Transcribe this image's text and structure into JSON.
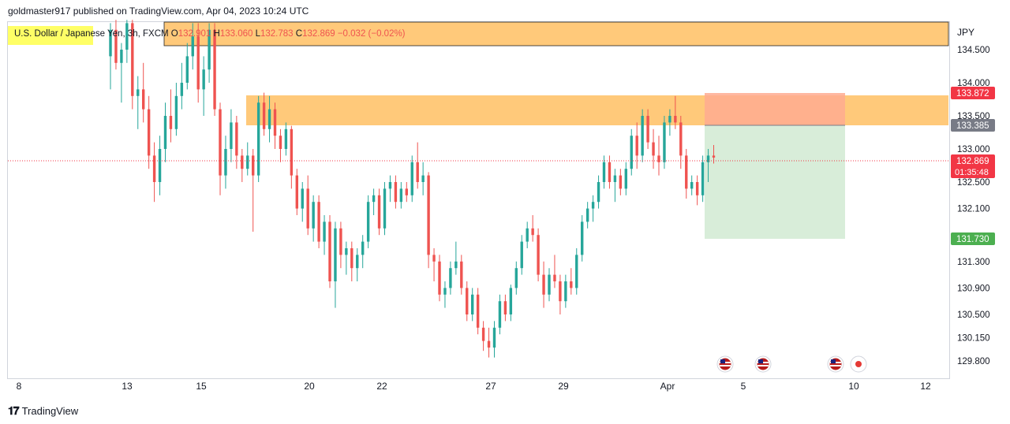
{
  "header": {
    "published": "goldmaster917 published on TradingView.com, Apr 04, 2023 10:24 UTC"
  },
  "legend": {
    "symbol": "U.S. Dollar / Japanese Yen, 3h, FXCM",
    "o_label": "O",
    "o_value": "132.901",
    "h_label": "H",
    "h_value": "133.060",
    "l_label": "L",
    "l_value": "132.783",
    "c_label": "C",
    "c_value": "132.869",
    "change": "−0.032 (−0.02%)"
  },
  "footer": {
    "logo": "𝟏𝟕",
    "brand": "TradingView"
  },
  "colors": {
    "up": "#26a69a",
    "down": "#ef5350",
    "zone": "#ffb74d",
    "profit": "#c8e6c9",
    "loss": "#ffab91",
    "target_tag": "#4caf50",
    "stop_tag": "#f23645",
    "entry_tag": "#787b86",
    "last_tag": "#f23645"
  },
  "chart_data": {
    "type": "candlestick",
    "symbol": "USDJPY",
    "timeframe": "3h",
    "currency": "JPY",
    "y_ticks": [
      "134.500",
      "134.000",
      "133.500",
      "133.000",
      "132.500",
      "132.100",
      "131.300",
      "130.900",
      "130.500",
      "130.150",
      "129.800"
    ],
    "y_tick_values": [
      134.5,
      134.0,
      133.5,
      133.0,
      132.5,
      132.1,
      131.3,
      130.9,
      130.5,
      130.15,
      129.8
    ],
    "x_ticks": [
      "8",
      "13",
      "15",
      "20",
      "22",
      "27",
      "29",
      "Apr",
      "5",
      "10",
      "12"
    ],
    "ylim": [
      129.75,
      134.95
    ],
    "candles": [
      {
        "o": 134.4,
        "h": 134.9,
        "l": 133.9,
        "c": 134.8
      },
      {
        "o": 134.8,
        "h": 134.95,
        "l": 134.2,
        "c": 134.3
      },
      {
        "o": 134.3,
        "h": 134.6,
        "l": 133.7,
        "c": 134.5
      },
      {
        "o": 134.5,
        "h": 134.95,
        "l": 134.3,
        "c": 134.9
      },
      {
        "o": 134.9,
        "h": 134.95,
        "l": 133.6,
        "c": 133.8
      },
      {
        "o": 133.8,
        "h": 134.1,
        "l": 133.3,
        "c": 133.9
      },
      {
        "o": 133.9,
        "h": 134.3,
        "l": 133.4,
        "c": 133.6
      },
      {
        "o": 133.6,
        "h": 133.8,
        "l": 132.7,
        "c": 132.9
      },
      {
        "o": 132.9,
        "h": 133.1,
        "l": 132.2,
        "c": 132.5
      },
      {
        "o": 132.5,
        "h": 133.2,
        "l": 132.3,
        "c": 133.0
      },
      {
        "o": 133.0,
        "h": 133.7,
        "l": 132.8,
        "c": 133.5
      },
      {
        "o": 133.5,
        "h": 133.9,
        "l": 133.1,
        "c": 133.3
      },
      {
        "o": 133.3,
        "h": 134.0,
        "l": 133.2,
        "c": 133.8
      },
      {
        "o": 133.8,
        "h": 134.3,
        "l": 133.6,
        "c": 134.0
      },
      {
        "o": 134.0,
        "h": 134.6,
        "l": 133.9,
        "c": 134.4
      },
      {
        "o": 134.4,
        "h": 134.9,
        "l": 134.2,
        "c": 134.7
      },
      {
        "o": 134.7,
        "h": 134.9,
        "l": 133.7,
        "c": 133.9
      },
      {
        "o": 133.9,
        "h": 134.4,
        "l": 133.5,
        "c": 134.2
      },
      {
        "o": 134.2,
        "h": 134.9,
        "l": 134.0,
        "c": 134.8
      },
      {
        "o": 134.8,
        "h": 134.9,
        "l": 133.5,
        "c": 133.6
      },
      {
        "o": 133.6,
        "h": 133.7,
        "l": 132.3,
        "c": 132.6
      },
      {
        "o": 132.6,
        "h": 133.2,
        "l": 132.4,
        "c": 133.0
      },
      {
        "o": 133.0,
        "h": 133.6,
        "l": 132.8,
        "c": 133.4
      },
      {
        "o": 133.4,
        "h": 133.5,
        "l": 132.7,
        "c": 132.9
      },
      {
        "o": 132.9,
        "h": 133.0,
        "l": 132.5,
        "c": 132.7
      },
      {
        "o": 132.7,
        "h": 133.1,
        "l": 132.6,
        "c": 132.9
      },
      {
        "o": 132.9,
        "h": 133.0,
        "l": 131.75,
        "c": 132.6
      },
      {
        "o": 132.6,
        "h": 133.8,
        "l": 132.5,
        "c": 133.7
      },
      {
        "o": 133.7,
        "h": 133.85,
        "l": 133.2,
        "c": 133.3
      },
      {
        "o": 133.3,
        "h": 133.8,
        "l": 133.1,
        "c": 133.6
      },
      {
        "o": 133.6,
        "h": 133.7,
        "l": 133.0,
        "c": 133.2
      },
      {
        "o": 133.2,
        "h": 133.3,
        "l": 132.8,
        "c": 133.0
      },
      {
        "o": 133.0,
        "h": 133.4,
        "l": 132.9,
        "c": 133.3
      },
      {
        "o": 133.3,
        "h": 133.35,
        "l": 132.4,
        "c": 132.6
      },
      {
        "o": 132.6,
        "h": 132.7,
        "l": 132.0,
        "c": 132.1
      },
      {
        "o": 132.1,
        "h": 132.5,
        "l": 131.9,
        "c": 132.4
      },
      {
        "o": 132.4,
        "h": 132.6,
        "l": 131.7,
        "c": 131.8
      },
      {
        "o": 131.8,
        "h": 132.3,
        "l": 131.6,
        "c": 132.2
      },
      {
        "o": 132.2,
        "h": 132.3,
        "l": 131.5,
        "c": 131.6
      },
      {
        "o": 131.6,
        "h": 132.0,
        "l": 131.4,
        "c": 131.9
      },
      {
        "o": 131.9,
        "h": 132.0,
        "l": 130.9,
        "c": 131.0
      },
      {
        "o": 131.0,
        "h": 131.9,
        "l": 130.6,
        "c": 131.8
      },
      {
        "o": 131.8,
        "h": 131.9,
        "l": 131.2,
        "c": 131.4
      },
      {
        "o": 131.4,
        "h": 131.6,
        "l": 131.1,
        "c": 131.5
      },
      {
        "o": 131.5,
        "h": 131.6,
        "l": 131.0,
        "c": 131.2
      },
      {
        "o": 131.2,
        "h": 131.5,
        "l": 131.0,
        "c": 131.4
      },
      {
        "o": 131.4,
        "h": 131.7,
        "l": 131.2,
        "c": 131.6
      },
      {
        "o": 131.6,
        "h": 132.3,
        "l": 131.5,
        "c": 132.2
      },
      {
        "o": 132.2,
        "h": 132.4,
        "l": 132.0,
        "c": 132.3
      },
      {
        "o": 132.3,
        "h": 132.4,
        "l": 131.7,
        "c": 131.8
      },
      {
        "o": 131.8,
        "h": 132.5,
        "l": 131.7,
        "c": 132.4
      },
      {
        "o": 132.4,
        "h": 132.6,
        "l": 132.2,
        "c": 132.5
      },
      {
        "o": 132.5,
        "h": 132.6,
        "l": 132.1,
        "c": 132.2
      },
      {
        "o": 132.2,
        "h": 132.5,
        "l": 132.1,
        "c": 132.4
      },
      {
        "o": 132.4,
        "h": 132.5,
        "l": 132.2,
        "c": 132.3
      },
      {
        "o": 132.3,
        "h": 132.9,
        "l": 132.2,
        "c": 132.8
      },
      {
        "o": 132.8,
        "h": 133.1,
        "l": 132.4,
        "c": 132.5
      },
      {
        "o": 132.5,
        "h": 132.8,
        "l": 132.3,
        "c": 132.6
      },
      {
        "o": 132.6,
        "h": 132.65,
        "l": 131.2,
        "c": 131.4
      },
      {
        "o": 131.4,
        "h": 131.5,
        "l": 131.0,
        "c": 131.3
      },
      {
        "o": 131.3,
        "h": 131.4,
        "l": 130.7,
        "c": 130.8
      },
      {
        "o": 130.8,
        "h": 131.0,
        "l": 130.6,
        "c": 130.9
      },
      {
        "o": 130.9,
        "h": 131.3,
        "l": 130.8,
        "c": 131.2
      },
      {
        "o": 131.2,
        "h": 131.6,
        "l": 131.1,
        "c": 131.3
      },
      {
        "o": 131.3,
        "h": 131.4,
        "l": 130.8,
        "c": 130.9
      },
      {
        "o": 130.9,
        "h": 131.0,
        "l": 130.4,
        "c": 130.5
      },
      {
        "o": 130.5,
        "h": 130.9,
        "l": 130.4,
        "c": 130.8
      },
      {
        "o": 130.8,
        "h": 130.9,
        "l": 130.2,
        "c": 130.3
      },
      {
        "o": 130.3,
        "h": 130.4,
        "l": 129.95,
        "c": 130.1
      },
      {
        "o": 130.1,
        "h": 130.3,
        "l": 129.85,
        "c": 130.0
      },
      {
        "o": 130.0,
        "h": 130.4,
        "l": 129.85,
        "c": 130.3
      },
      {
        "o": 130.3,
        "h": 130.8,
        "l": 130.2,
        "c": 130.7
      },
      {
        "o": 130.7,
        "h": 130.8,
        "l": 130.4,
        "c": 130.5
      },
      {
        "o": 130.5,
        "h": 130.95,
        "l": 130.4,
        "c": 130.9
      },
      {
        "o": 130.9,
        "h": 131.3,
        "l": 130.8,
        "c": 131.2
      },
      {
        "o": 131.2,
        "h": 131.7,
        "l": 131.1,
        "c": 131.6
      },
      {
        "o": 131.6,
        "h": 131.9,
        "l": 131.5,
        "c": 131.8
      },
      {
        "o": 131.8,
        "h": 132.0,
        "l": 131.6,
        "c": 131.7
      },
      {
        "o": 131.7,
        "h": 131.8,
        "l": 131.0,
        "c": 131.1
      },
      {
        "o": 131.1,
        "h": 131.3,
        "l": 130.6,
        "c": 130.8
      },
      {
        "o": 130.8,
        "h": 131.2,
        "l": 130.7,
        "c": 131.1
      },
      {
        "o": 131.1,
        "h": 131.4,
        "l": 130.9,
        "c": 131.0
      },
      {
        "o": 131.0,
        "h": 131.1,
        "l": 130.5,
        "c": 130.7
      },
      {
        "o": 130.7,
        "h": 131.1,
        "l": 130.6,
        "c": 131.0
      },
      {
        "o": 131.0,
        "h": 131.2,
        "l": 130.8,
        "c": 130.9
      },
      {
        "o": 130.9,
        "h": 131.5,
        "l": 130.8,
        "c": 131.4
      },
      {
        "o": 131.4,
        "h": 132.0,
        "l": 131.3,
        "c": 131.9
      },
      {
        "o": 131.9,
        "h": 132.2,
        "l": 131.8,
        "c": 132.1
      },
      {
        "o": 132.1,
        "h": 132.3,
        "l": 131.9,
        "c": 132.2
      },
      {
        "o": 132.2,
        "h": 132.6,
        "l": 132.1,
        "c": 132.5
      },
      {
        "o": 132.5,
        "h": 132.9,
        "l": 132.4,
        "c": 132.8
      },
      {
        "o": 132.8,
        "h": 132.9,
        "l": 132.4,
        "c": 132.5
      },
      {
        "o": 132.5,
        "h": 132.7,
        "l": 132.2,
        "c": 132.6
      },
      {
        "o": 132.6,
        "h": 132.7,
        "l": 132.3,
        "c": 132.4
      },
      {
        "o": 132.4,
        "h": 132.8,
        "l": 132.3,
        "c": 132.7
      },
      {
        "o": 132.7,
        "h": 133.3,
        "l": 132.6,
        "c": 133.2
      },
      {
        "o": 133.2,
        "h": 133.4,
        "l": 132.7,
        "c": 132.9
      },
      {
        "o": 132.9,
        "h": 133.6,
        "l": 132.8,
        "c": 133.5
      },
      {
        "o": 133.5,
        "h": 133.6,
        "l": 133.0,
        "c": 133.1
      },
      {
        "o": 133.1,
        "h": 133.3,
        "l": 132.7,
        "c": 132.9
      },
      {
        "o": 132.9,
        "h": 133.2,
        "l": 132.6,
        "c": 132.8
      },
      {
        "o": 132.8,
        "h": 133.5,
        "l": 132.7,
        "c": 133.4
      },
      {
        "o": 133.4,
        "h": 133.6,
        "l": 133.2,
        "c": 133.5
      },
      {
        "o": 133.5,
        "h": 133.8,
        "l": 133.3,
        "c": 133.4
      },
      {
        "o": 133.4,
        "h": 133.5,
        "l": 132.7,
        "c": 132.9
      },
      {
        "o": 132.9,
        "h": 133.0,
        "l": 132.25,
        "c": 132.4
      },
      {
        "o": 132.4,
        "h": 132.6,
        "l": 132.3,
        "c": 132.5
      },
      {
        "o": 132.5,
        "h": 132.6,
        "l": 132.15,
        "c": 132.3
      },
      {
        "o": 132.3,
        "h": 132.9,
        "l": 132.2,
        "c": 132.8
      },
      {
        "o": 132.8,
        "h": 133.0,
        "l": 132.5,
        "c": 132.9
      },
      {
        "o": 132.9,
        "h": 133.06,
        "l": 132.78,
        "c": 132.87
      }
    ],
    "levels": {
      "target": "131.730",
      "entry": "133.385",
      "stop": "133.872",
      "last_price": "132.869",
      "countdown": "01:35:48"
    },
    "zones": [
      {
        "name": "upper-resistance-zone",
        "from": 134.55,
        "to": 134.9
      },
      {
        "name": "resistance-zone",
        "from": 133.4,
        "to": 133.85
      }
    ]
  }
}
